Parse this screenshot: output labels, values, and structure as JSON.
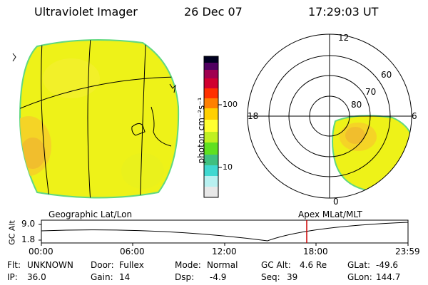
{
  "header": {
    "instrument": "Ultraviolet Imager",
    "date": "26 Dec 07",
    "time": "17:29:03 UT"
  },
  "colorbar": {
    "unit_label": "photon cm⁻²s⁻¹",
    "tick_100": "100",
    "tick_10": "10",
    "colors": [
      "#e8e8e8",
      "#b8f0f0",
      "#40d8d0",
      "#40c080",
      "#60e020",
      "#c0f020",
      "#ffff30",
      "#ffd000",
      "#ff8000",
      "#ff3000",
      "#d00030",
      "#a00050",
      "#500060",
      "#000020"
    ]
  },
  "polar_plot": {
    "lat_labels": [
      "60",
      "70",
      "80"
    ],
    "mlt_labels": [
      "12",
      "18",
      "6",
      "0"
    ],
    "caption": "Apex MLat/MLT"
  },
  "geo_plot": {
    "caption": "Geographic Lat/Lon"
  },
  "orbit_strip": {
    "axis_label": "GC Alt",
    "y_ticks": [
      "9.0",
      "1.8"
    ],
    "x_ticks": [
      "00:00",
      "06:00",
      "12:00",
      "18:00",
      "23:59"
    ],
    "marker_color": "#cc0000"
  },
  "info": {
    "filter_label": "Flt:",
    "filter_value": "UNKNOWN",
    "ip_label": "IP:",
    "ip_value": "36.0",
    "door_label": "Door:",
    "door_value": "Fullex",
    "gain_label": "Gain:",
    "gain_value": "14",
    "mode_label": "Mode:",
    "mode_value": "Normal",
    "dsp_label": "Dsp:",
    "dsp_value": "-4.9",
    "gcalt_label": "GC Alt:",
    "gcalt_value": "4.6 Re",
    "seq_label": "Seq:",
    "seq_value": "39",
    "glat_label": "GLat:",
    "glat_value": "-49.6",
    "glon_label": "GLon:",
    "glon_value": "144.7"
  }
}
